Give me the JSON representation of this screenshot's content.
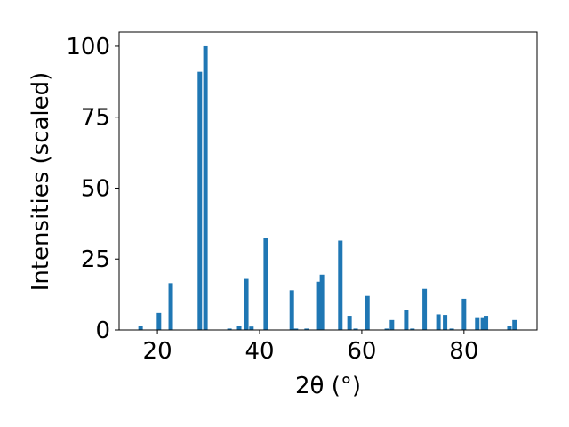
{
  "chart_data": {
    "type": "bar",
    "xlabel": "2θ (°)",
    "ylabel": "Intensities (scaled)",
    "x": [
      16.7,
      20.3,
      22.6,
      28.3,
      29.4,
      34.1,
      36.0,
      37.4,
      38.4,
      41.2,
      46.3,
      47.1,
      49.2,
      51.5,
      52.2,
      55.8,
      57.6,
      58.8,
      61.1,
      64.9,
      65.9,
      68.7,
      69.9,
      72.3,
      75.0,
      76.3,
      77.6,
      80.0,
      82.6,
      83.7,
      84.3,
      88.9,
      89.9
    ],
    "values": [
      1.5,
      6,
      16.5,
      91,
      100,
      0.5,
      1.5,
      18,
      1.2,
      32.5,
      14,
      0.5,
      0.5,
      17,
      19.5,
      31.5,
      5,
      0.5,
      12,
      0.5,
      3.5,
      7,
      0.5,
      14.5,
      5.5,
      5.3,
      0.5,
      11,
      4.5,
      4.5,
      5,
      1.5,
      3.5
    ],
    "color": "#1f77b4",
    "xlim": [
      12.5,
      94.3
    ],
    "ylim": [
      0,
      105
    ],
    "xticks": [
      20,
      40,
      60,
      80
    ],
    "yticks": [
      0,
      25,
      50,
      75,
      100
    ],
    "grid": false
  }
}
